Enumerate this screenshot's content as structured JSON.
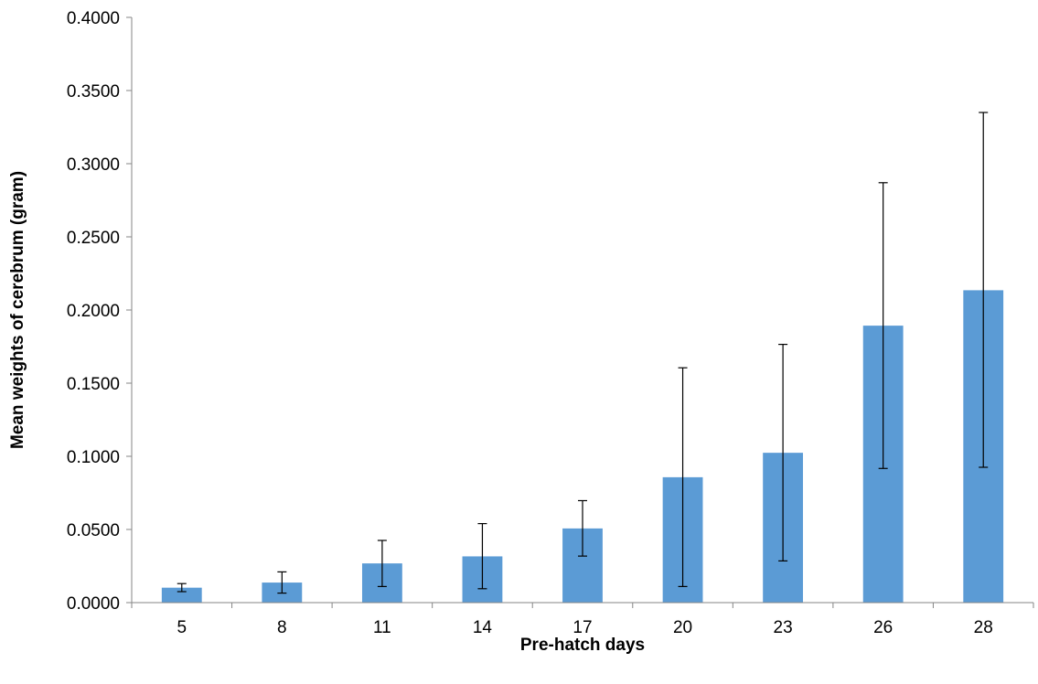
{
  "chart_data": {
    "type": "bar",
    "title": "",
    "xlabel": "Pre-hatch days",
    "ylabel": "Mean weights of cerebrum (gram)",
    "categories": [
      "5",
      "8",
      "11",
      "14",
      "17",
      "20",
      "23",
      "26",
      "28"
    ],
    "values": [
      0.0102,
      0.0137,
      0.0268,
      0.0316,
      0.0507,
      0.0857,
      0.1024,
      0.1893,
      0.2135
    ],
    "error_low": [
      0.0075,
      0.0065,
      0.011,
      0.0095,
      0.0318,
      0.011,
      0.0285,
      0.0917,
      0.0925
    ],
    "error_high": [
      0.013,
      0.021,
      0.0425,
      0.054,
      0.0697,
      0.1605,
      0.1765,
      0.287,
      0.335
    ],
    "ylim": [
      0,
      0.4
    ],
    "yticks": [
      "0.0000",
      "0.0500",
      "0.1000",
      "0.1500",
      "0.2000",
      "0.2500",
      "0.3000",
      "0.3500",
      "0.4000"
    ],
    "bar_color": "#5b9bd5",
    "error_bar_color": "#000000",
    "grid": false,
    "legend": "none"
  }
}
